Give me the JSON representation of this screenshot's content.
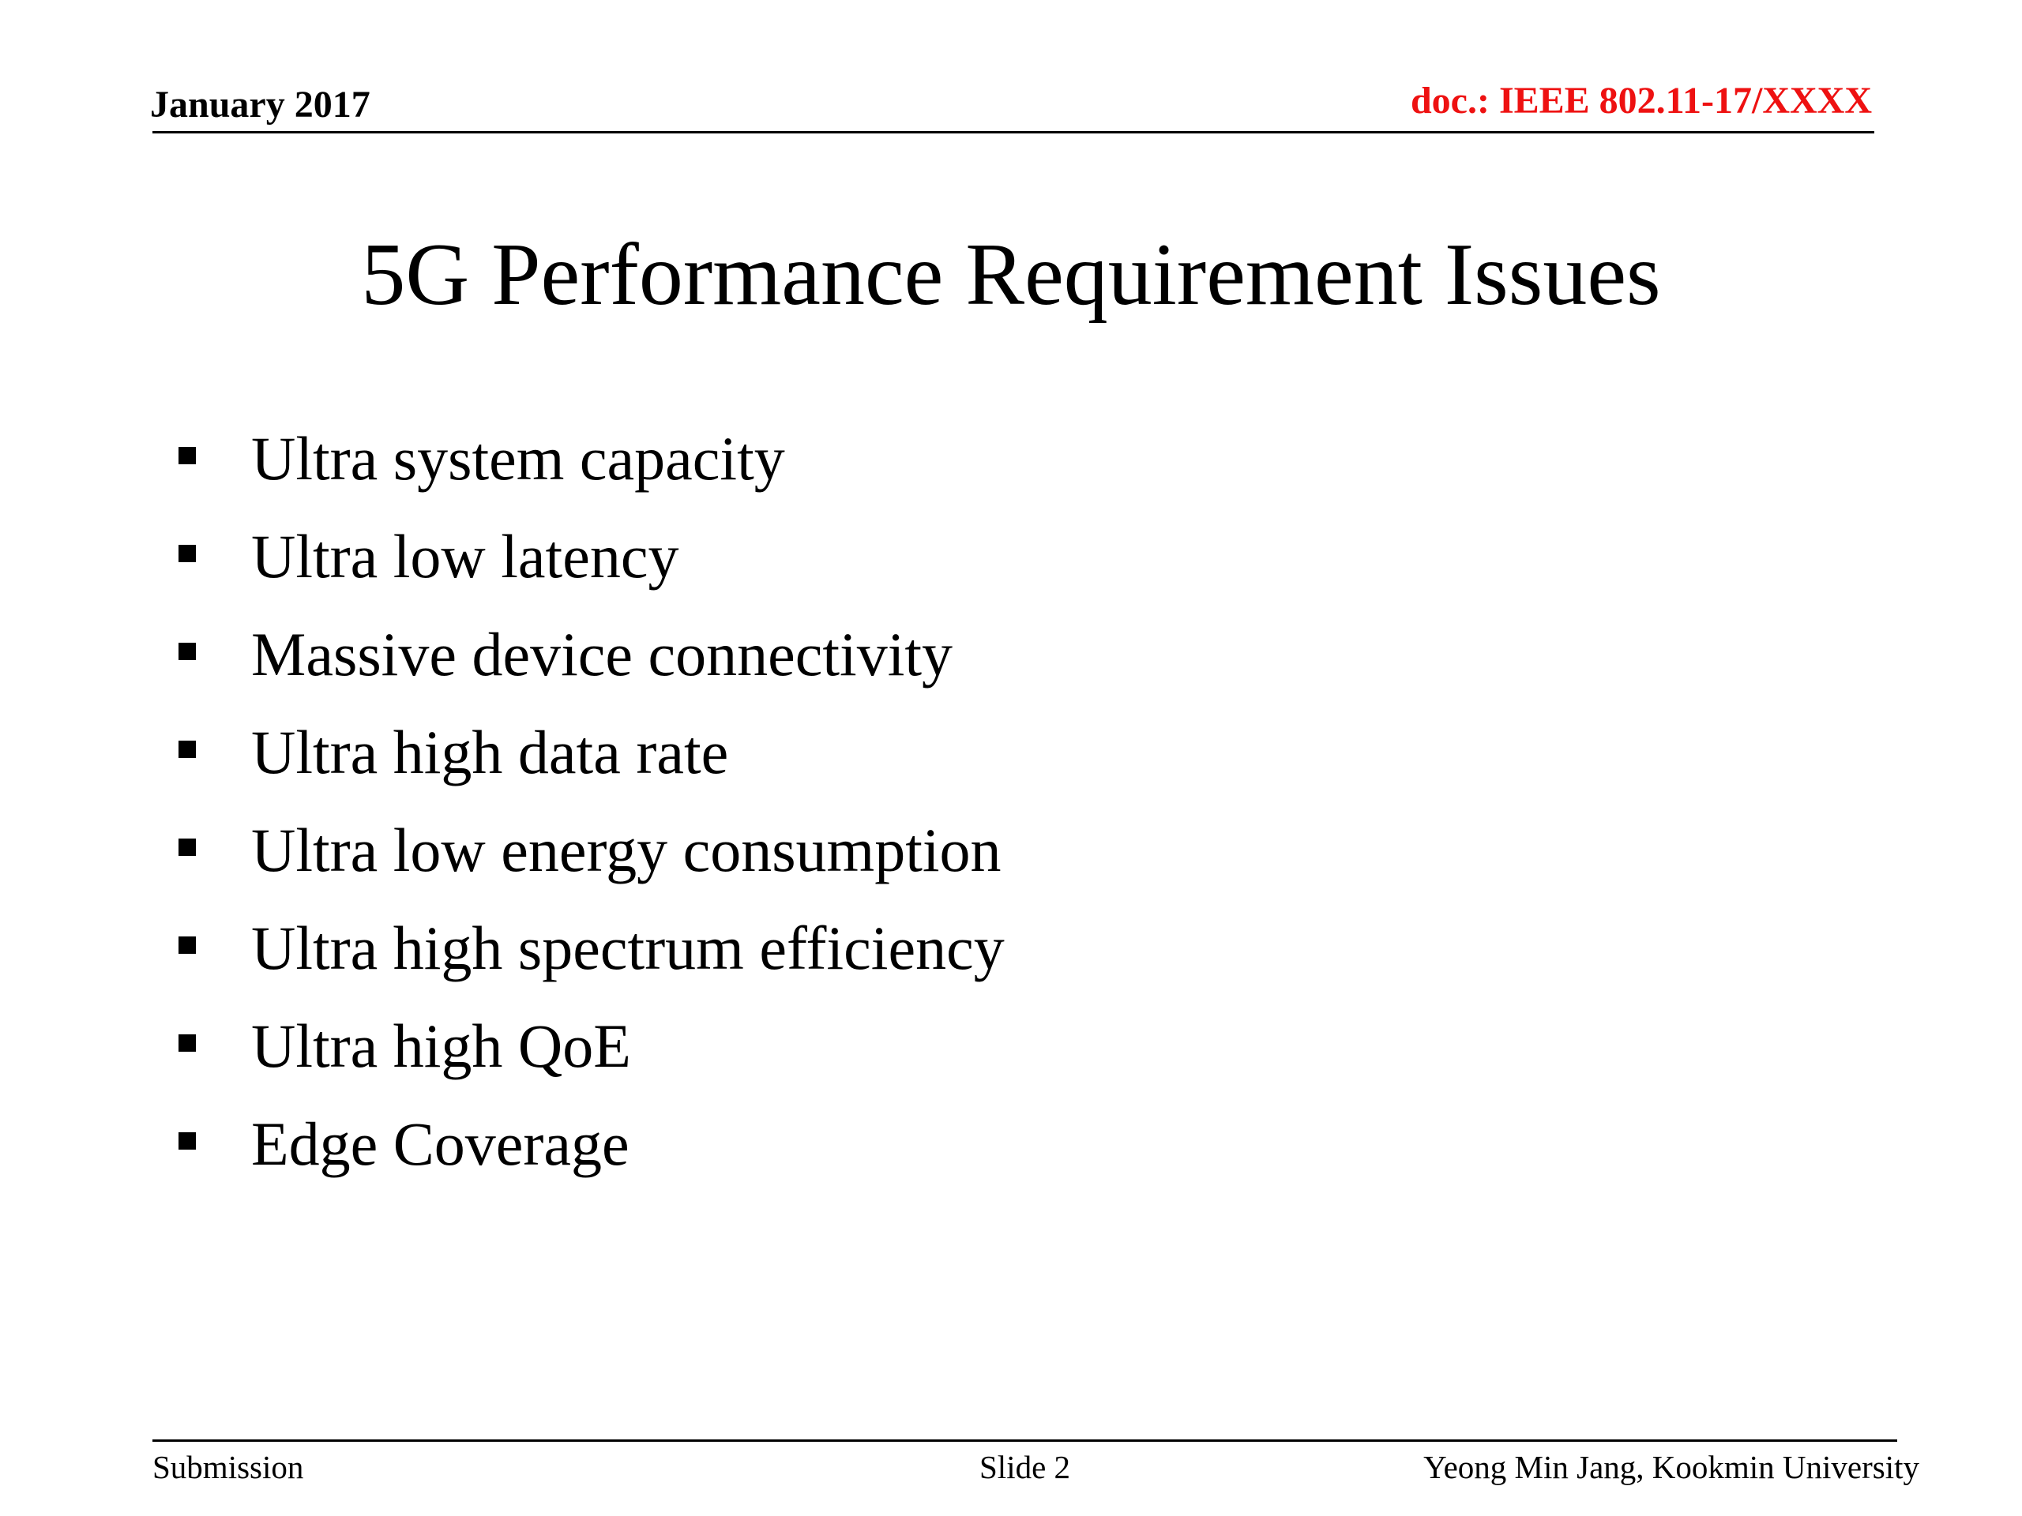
{
  "header": {
    "date": "January 2017",
    "doc_id": "doc.: IEEE 802.11-17/XXXX"
  },
  "slide": {
    "title": "5G Performance Requirement Issues",
    "bullets": [
      "Ultra system capacity",
      "Ultra low latency",
      "Massive device connectivity",
      "Ultra high data rate",
      "Ultra low energy consumption",
      "Ultra high spectrum efficiency",
      "Ultra high QoE",
      "Edge Coverage"
    ]
  },
  "footer": {
    "left": "Submission",
    "center": "Slide 2",
    "right": "Yeong Min Jang, Kookmin University"
  },
  "colors": {
    "doc_id": "#ee1111",
    "text": "#000000",
    "background": "#ffffff"
  }
}
